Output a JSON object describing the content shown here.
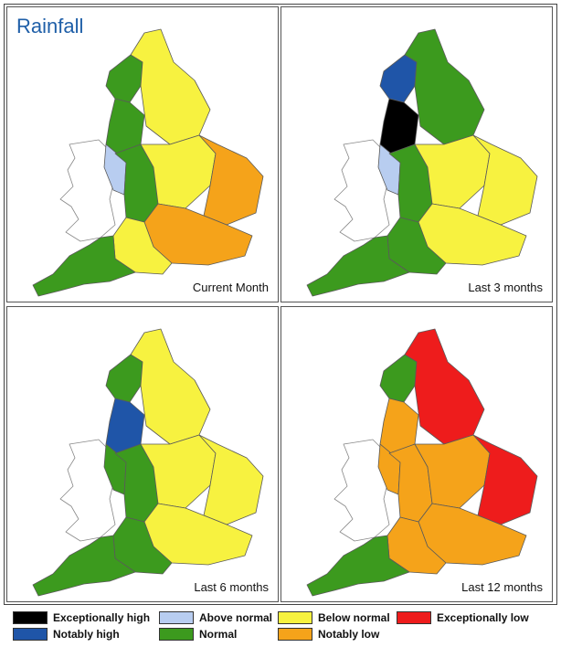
{
  "title": "Rainfall",
  "colors": {
    "exceptionally_high": "#000000",
    "notably_high": "#1f55a8",
    "above_normal": "#b8cdf0",
    "normal": "#3c9a1e",
    "below_normal": "#f7f240",
    "notably_low": "#f5a31a",
    "exceptionally_low": "#ee1c1c",
    "wales": "#ffffff"
  },
  "panels": [
    {
      "label": "Current Month",
      "regions": {
        "nw": "normal",
        "ne": "below_normal",
        "cumbria": "normal",
        "lancs": "above_normal",
        "wm": "normal",
        "em": "below_normal",
        "ea": "notably_low",
        "se": "notably_low",
        "sw": "normal",
        "s": "below_normal"
      }
    },
    {
      "label": "Last 3 months",
      "regions": {
        "nw": "exceptionally_high",
        "ne": "normal",
        "cumbria": "notably_high",
        "lancs": "above_normal",
        "wm": "normal",
        "em": "below_normal",
        "ea": "below_normal",
        "se": "below_normal",
        "sw": "normal",
        "s": "normal"
      }
    },
    {
      "label": "Last 6 months",
      "regions": {
        "nw": "notably_high",
        "ne": "below_normal",
        "cumbria": "normal",
        "lancs": "normal",
        "wm": "normal",
        "em": "below_normal",
        "ea": "below_normal",
        "se": "below_normal",
        "sw": "normal",
        "s": "normal"
      }
    },
    {
      "label": "Last 12 months",
      "regions": {
        "nw": "notably_low",
        "ne": "exceptionally_low",
        "cumbria": "normal",
        "lancs": "notably_low",
        "wm": "notably_low",
        "em": "notably_low",
        "ea": "exceptionally_low",
        "se": "notably_low",
        "sw": "normal",
        "s": "notably_low"
      }
    }
  ],
  "legend": [
    {
      "key": "exceptionally_high",
      "label": "Exceptionally high"
    },
    {
      "key": "notably_high",
      "label": "Notably high"
    },
    {
      "key": "above_normal",
      "label": "Above normal"
    },
    {
      "key": "normal",
      "label": "Normal"
    },
    {
      "key": "below_normal",
      "label": "Below normal"
    },
    {
      "key": "notably_low",
      "label": "Notably low"
    },
    {
      "key": "exceptionally_low",
      "label": "Exceptionally low"
    }
  ]
}
